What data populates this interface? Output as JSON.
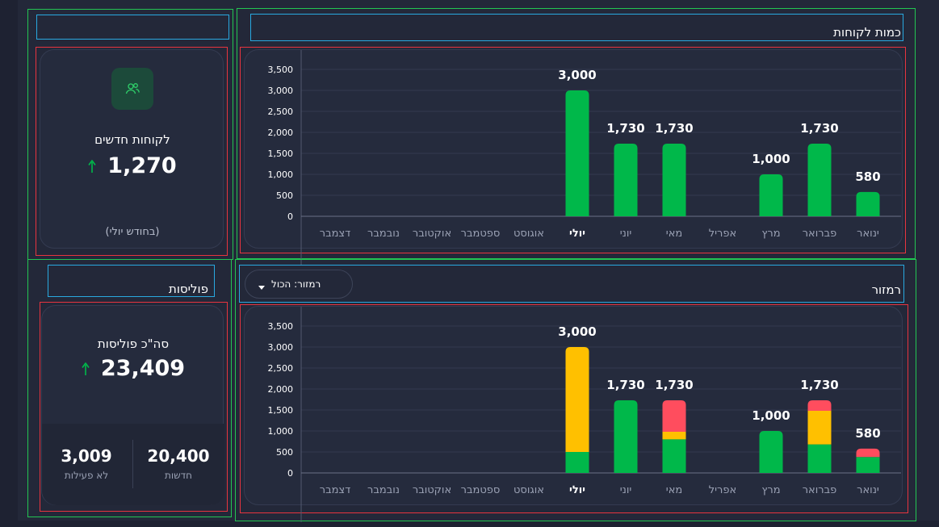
{
  "customers_section": {
    "title": "כמות לקוחות"
  },
  "new_customers_card": {
    "label": "לקוחות חדשים",
    "value": "1,270",
    "note": "(בחודש יולי)",
    "icon": "users-icon",
    "trend_icon": "arrow-up-icon"
  },
  "policies_section": {
    "title": "פוליסות"
  },
  "policies_card": {
    "label": "סה\"כ פוליסות",
    "value": "23,409",
    "trend_icon": "arrow-up-icon",
    "new_value": "20,400",
    "new_label": "חדשות",
    "inactive_value": "3,009",
    "inactive_label": "לא פעילות"
  },
  "reminder_section": {
    "title": "רמזור",
    "filter_label": "רמזור: הכול"
  },
  "colors": {
    "accent_green": "#00b84a",
    "amber": "#ffc000",
    "red": "#ff4d5e",
    "background": "#232839",
    "card": "#252b3d"
  },
  "chart_data": [
    {
      "type": "bar",
      "title": "כמות לקוחות",
      "categories": [
        "ינואר",
        "פברואר",
        "מרץ",
        "אפריל",
        "מאי",
        "יוני",
        "יולי",
        "אוגוסט",
        "ספטמבר",
        "אוקטובר",
        "נובמבר",
        "דצמבר"
      ],
      "highlighted_category": "יולי",
      "series": [
        {
          "color": "#00b84a",
          "values": [
            580,
            1730,
            1000,
            0,
            1730,
            1730,
            3000,
            0,
            0,
            0,
            0,
            0
          ]
        }
      ],
      "totals": [
        580,
        1730,
        1000,
        null,
        1730,
        1730,
        3000,
        null,
        null,
        null,
        null,
        null
      ],
      "total_labels": [
        "580",
        "1,730",
        "1,000",
        "",
        "1,730",
        "1,730",
        "3,000",
        "",
        "",
        "",
        "",
        ""
      ],
      "yticks": [
        "0",
        "500",
        "1,000",
        "1,500",
        "2,000",
        "2,500",
        "3,000",
        "3,500"
      ],
      "ylim": [
        0,
        3500
      ],
      "xlabel": "",
      "ylabel": "",
      "grid": true
    },
    {
      "type": "bar",
      "stacked": true,
      "title": "רמזור",
      "categories": [
        "ינואר",
        "פברואר",
        "מרץ",
        "אפריל",
        "מאי",
        "יוני",
        "יולי",
        "אוגוסט",
        "ספטמבר",
        "אוקטובר",
        "נובמבר",
        "דצמבר"
      ],
      "highlighted_category": "יולי",
      "series": [
        {
          "color": "#00b84a",
          "values": [
            380,
            680,
            1000,
            0,
            800,
            1730,
            500,
            0,
            0,
            0,
            0,
            0
          ]
        },
        {
          "color": "#ffc000",
          "values": [
            0,
            800,
            0,
            0,
            180,
            0,
            2500,
            0,
            0,
            0,
            0,
            0
          ]
        },
        {
          "color": "#ff4d5e",
          "values": [
            200,
            250,
            0,
            0,
            750,
            0,
            0,
            0,
            0,
            0,
            0,
            0
          ]
        }
      ],
      "totals": [
        580,
        1730,
        1000,
        null,
        1730,
        1730,
        3000,
        null,
        null,
        null,
        null,
        null
      ],
      "total_labels": [
        "580",
        "1,730",
        "1,000",
        "",
        "1,730",
        "1,730",
        "3,000",
        "",
        "",
        "",
        "",
        ""
      ],
      "yticks": [
        "0",
        "500",
        "1,000",
        "1,500",
        "2,000",
        "2,500",
        "3,000",
        "3,500"
      ],
      "ylim": [
        0,
        3500
      ],
      "xlabel": "",
      "ylabel": "",
      "grid": true
    }
  ]
}
